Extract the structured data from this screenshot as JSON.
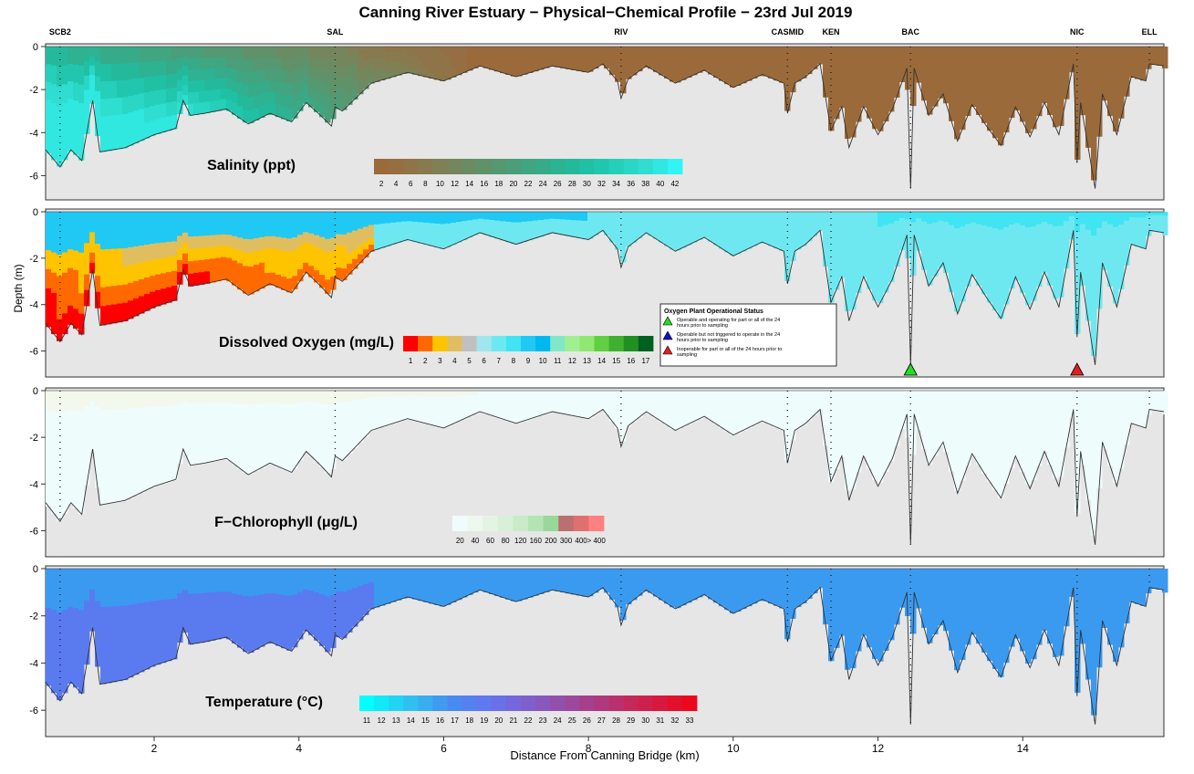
{
  "title": "Canning River Estuary − Physical−Chemical Profile − 23rd Jul 2019",
  "colors": {
    "bed": "#e6e6e6",
    "salinity_fresh": "#9a6a3a",
    "salinity_salt": "#3ac8b8",
    "oxygen_good": "#4ee6ee",
    "oxygen_top": "#22b4f0",
    "chloro_fill": "#eefcfc",
    "chloro_bloom": "#f4f7ec",
    "temp_surface": "#3a9af0",
    "temp_deep": "#5a7af0"
  },
  "chart_data": {
    "type": "heatmap",
    "subtype": "depth-distance profile, 4 panels",
    "xlabel": "Distance From Canning Bridge (km)",
    "ylabel": "Depth (m)",
    "xlim": [
      0.5,
      15.95
    ],
    "ylim": [
      -7,
      0
    ],
    "x_ticks": [
      2,
      4,
      6,
      8,
      10,
      12,
      14
    ],
    "y_ticks": [
      0,
      -2,
      -4,
      -6
    ],
    "sites": [
      {
        "name": "SCB2",
        "x": 0.7
      },
      {
        "name": "SAL",
        "x": 4.5
      },
      {
        "name": "RIV",
        "x": 8.45
      },
      {
        "name": "CASMID",
        "x": 10.75
      },
      {
        "name": "KEN",
        "x": 11.35
      },
      {
        "name": "BAC",
        "x": 12.45
      },
      {
        "name": "NIC",
        "x": 14.75
      },
      {
        "name": "ELL",
        "x": 15.75
      }
    ],
    "bed_profile": {
      "x": [
        0.5,
        0.7,
        0.85,
        1.0,
        1.15,
        1.25,
        1.6,
        2.0,
        2.3,
        2.4,
        2.5,
        2.7,
        3.0,
        3.3,
        3.6,
        3.9,
        4.1,
        4.3,
        4.45,
        4.5,
        4.6,
        5.0,
        5.5,
        6.0,
        6.5,
        7.0,
        7.5,
        8.0,
        8.2,
        8.4,
        8.45,
        8.55,
        8.8,
        9.2,
        9.6,
        10.0,
        10.4,
        10.7,
        10.75,
        10.85,
        11.0,
        11.2,
        11.35,
        11.5,
        11.6,
        11.8,
        12.0,
        12.2,
        12.4,
        12.45,
        12.5,
        12.7,
        12.9,
        13.1,
        13.3,
        13.5,
        13.7,
        13.9,
        14.1,
        14.3,
        14.5,
        14.7,
        14.75,
        14.8,
        15.0,
        15.1,
        15.3,
        15.5,
        15.7,
        15.75,
        15.95
      ],
      "depth": [
        -4.8,
        -5.6,
        -4.8,
        -5.3,
        -2.5,
        -4.9,
        -4.7,
        -4.1,
        -3.8,
        -2.5,
        -3.2,
        -3.1,
        -2.9,
        -3.6,
        -3.1,
        -3.5,
        -2.6,
        -3.2,
        -3.7,
        -2.8,
        -3.0,
        -1.7,
        -1.2,
        -1.6,
        -0.9,
        -1.4,
        -0.9,
        -1.2,
        -0.8,
        -1.6,
        -2.4,
        -1.5,
        -0.9,
        -1.7,
        -1.1,
        -1.9,
        -1.3,
        -1.7,
        -3.1,
        -1.7,
        -1.4,
        -0.8,
        -3.9,
        -2.8,
        -4.7,
        -2.8,
        -4.1,
        -2.9,
        -1.0,
        -6.6,
        -1.0,
        -3.2,
        -2.2,
        -4.4,
        -2.7,
        -3.7,
        -4.6,
        -2.8,
        -4.2,
        -2.6,
        -4.1,
        -0.8,
        -5.4,
        -2.6,
        -6.6,
        -2.2,
        -4.1,
        -1.4,
        -1.6,
        -0.8,
        -0.9
      ]
    },
    "panels": [
      {
        "title": "Salinity (ppt)",
        "legend_labels": [
          "2",
          "4",
          "6",
          "8",
          "10",
          "12",
          "14",
          "16",
          "18",
          "20",
          "22",
          "24",
          "26",
          "28",
          "30",
          "32",
          "34",
          "36",
          "38",
          "40",
          "42"
        ],
        "legend_colors": [
          "#9a6a3a",
          "#966e42",
          "#8f7448",
          "#887a4e",
          "#7f8055",
          "#75865c",
          "#6a8c63",
          "#60926a",
          "#559872",
          "#4a9e79",
          "#40a581",
          "#36ab89",
          "#2db292",
          "#25b99b",
          "#20c0a4",
          "#20c7ae",
          "#25cfb9",
          "#2ad6c4",
          "#2fded0",
          "#30e8e0",
          "#30f4f6"
        ]
      },
      {
        "title": "Dissolved Oxygen (mg/L)",
        "legend_labels": [
          "1",
          "2",
          "3",
          "4",
          "5",
          "6",
          "7",
          "8",
          "9",
          "10",
          "11",
          "12",
          "13",
          "14",
          "15",
          "16",
          "17"
        ],
        "legend_colors": [
          "#ff0000",
          "#ff6a00",
          "#ffc400",
          "#e0be60",
          "#c0c0c0",
          "#a0e6ef",
          "#6ee8f0",
          "#40e4f2",
          "#20c8f4",
          "#00b8f0",
          "#80e8c8",
          "#a0f090",
          "#90e870",
          "#60d040",
          "#40b030",
          "#209020",
          "#006020"
        ],
        "oxygen_plant": {
          "title": "Oxygen Plant Operational Status",
          "items": [
            {
              "label": "Operable and operating for part or all of the 24 hours prior to sampling",
              "color": "#22dd22"
            },
            {
              "label": "Operable but not triggered to operate in the 24 hours prior to sampling",
              "color": "#1010c0"
            },
            {
              "label": "Inoperable for part or all of the 24 hours prior to sampling",
              "color": "#e02020"
            }
          ],
          "markers": [
            {
              "site": "BAC",
              "x": 12.45,
              "status_color": "#22dd22"
            },
            {
              "site": "NIC",
              "x": 14.75,
              "status_color": "#e02020"
            }
          ]
        }
      },
      {
        "title": "F−Chlorophyll (μg/L)",
        "legend_labels": [
          "20",
          "40",
          "60",
          "80",
          "120",
          "160",
          "200",
          "300",
          "400",
          "> 400"
        ],
        "legend_colors": [
          "#eefcfc",
          "#eef8ee",
          "#e4f4e4",
          "#d8f0d8",
          "#c8ecc8",
          "#b4e4b4",
          "#98d898",
          "#b87070",
          "#e07070",
          "#ff8080"
        ]
      },
      {
        "title": "Temperature (°C)",
        "legend_labels": [
          "11",
          "12",
          "13",
          "14",
          "15",
          "16",
          "17",
          "18",
          "19",
          "20",
          "21",
          "22",
          "23",
          "24",
          "25",
          "26",
          "27",
          "28",
          "29",
          "30",
          "31",
          "32",
          "33"
        ],
        "legend_colors": [
          "#00ffff",
          "#10eaf8",
          "#20d4f4",
          "#30c0f0",
          "#3aacf0",
          "#409af0",
          "#4a8af0",
          "#5680f0",
          "#6078f0",
          "#6a70e8",
          "#7468dc",
          "#7e60cc",
          "#8858bc",
          "#9250ac",
          "#9c489c",
          "#a6408c",
          "#b0387c",
          "#ba306c",
          "#c4285c",
          "#ce204c",
          "#d8183c",
          "#e2102c",
          "#ec081c"
        ]
      }
    ]
  }
}
